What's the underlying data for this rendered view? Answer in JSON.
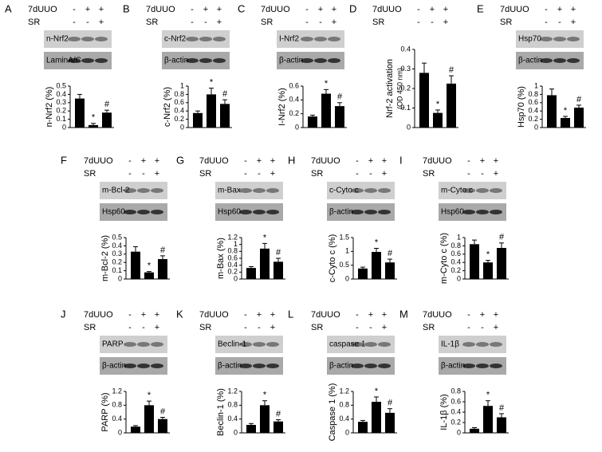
{
  "chart_data": [
    {
      "type": "bar",
      "panel": "A",
      "treatments": [
        {
          "name": "7dUUO",
          "signs": [
            "-",
            "+",
            "+"
          ]
        },
        {
          "name": "SR",
          "signs": [
            "-",
            "-",
            "+"
          ]
        }
      ],
      "blots": [
        "n-Nrf2",
        "LaminA/C"
      ],
      "ylabel": "n-Nrf2 (%)",
      "ylim": [
        0,
        0.5
      ],
      "yticks": [
        0,
        0.1,
        0.2,
        0.3,
        0.4,
        0.5
      ],
      "values": [
        0.35,
        0.03,
        0.18
      ],
      "errors": [
        0.05,
        0.02,
        0.03
      ],
      "markers": [
        null,
        "*",
        "#"
      ],
      "color": "#000000"
    },
    {
      "type": "bar",
      "panel": "B",
      "treatments": [
        {
          "name": "7dUUO",
          "signs": [
            "-",
            "+",
            "+"
          ]
        },
        {
          "name": "SR",
          "signs": [
            "-",
            "-",
            "+"
          ]
        }
      ],
      "blots": [
        "c-Nrf2",
        "β-actin"
      ],
      "ylabel": "c-Nrf2 (%)",
      "ylim": [
        0,
        1
      ],
      "yticks": [
        0,
        0.2,
        0.4,
        0.6,
        0.8,
        1
      ],
      "values": [
        0.35,
        0.8,
        0.57
      ],
      "errors": [
        0.05,
        0.15,
        0.1
      ],
      "markers": [
        null,
        "*",
        "#"
      ],
      "color": "#000000"
    },
    {
      "type": "bar",
      "panel": "C",
      "treatments": [
        {
          "name": "7dUUO",
          "signs": [
            "-",
            "+",
            "+"
          ]
        },
        {
          "name": "SR",
          "signs": [
            "-",
            "-",
            "+"
          ]
        }
      ],
      "blots": [
        "I-Nrf2",
        "β-actin"
      ],
      "ylabel": "I-Nrf2 (%)",
      "ylim": [
        0,
        0.6
      ],
      "yticks": [
        0,
        0.2,
        0.4,
        0.6
      ],
      "values": [
        0.16,
        0.49,
        0.31
      ],
      "errors": [
        0.02,
        0.06,
        0.05
      ],
      "markers": [
        null,
        "*",
        "#"
      ],
      "color": "#000000"
    },
    {
      "type": "bar",
      "panel": "D",
      "treatments": [
        {
          "name": "7dUUO",
          "signs": [
            "-",
            "+",
            "+"
          ]
        },
        {
          "name": "SR",
          "signs": [
            "-",
            "-",
            "+"
          ]
        }
      ],
      "ylabel": "Nrf-2 activation",
      "ylabel_sub": "(OD 450 nm)",
      "ylim": [
        0,
        0.4
      ],
      "yticks": [
        0,
        0.1,
        0.2,
        0.3,
        0.4
      ],
      "values": [
        0.28,
        0.075,
        0.225
      ],
      "errors": [
        0.05,
        0.015,
        0.04
      ],
      "markers": [
        null,
        "*",
        "#"
      ],
      "color": "#000000"
    },
    {
      "type": "bar",
      "panel": "E",
      "treatments": [
        {
          "name": "7dUUO",
          "signs": [
            "-",
            "+",
            "+"
          ]
        },
        {
          "name": "SR",
          "signs": [
            "-",
            "-",
            "+"
          ]
        }
      ],
      "blots": [
        "Hsp70",
        "β-actin"
      ],
      "ylabel": "Hsp70 (%)",
      "ylim": [
        0,
        1
      ],
      "yticks": [
        0,
        0.2,
        0.4,
        0.6,
        0.8,
        1
      ],
      "values": [
        0.78,
        0.23,
        0.48
      ],
      "errors": [
        0.15,
        0.04,
        0.06
      ],
      "markers": [
        null,
        "*",
        "#"
      ],
      "color": "#000000"
    },
    {
      "type": "bar",
      "panel": "F",
      "treatments": [
        {
          "name": "7dUUO",
          "signs": [
            "-",
            "+",
            "+"
          ]
        },
        {
          "name": "SR",
          "signs": [
            "-",
            "-",
            "+"
          ]
        }
      ],
      "blots": [
        "m-Bcl-2",
        "Hsp60"
      ],
      "ylabel": "m-Bcl-2 (%)",
      "ylim": [
        0,
        0.5
      ],
      "yticks": [
        0,
        0.1,
        0.2,
        0.3,
        0.4,
        0.5
      ],
      "values": [
        0.33,
        0.08,
        0.24
      ],
      "errors": [
        0.06,
        0.01,
        0.04
      ],
      "markers": [
        null,
        "*",
        "#"
      ],
      "color": "#000000"
    },
    {
      "type": "bar",
      "panel": "G",
      "treatments": [
        {
          "name": "7dUUO",
          "signs": [
            "-",
            "+",
            "+"
          ]
        },
        {
          "name": "SR",
          "signs": [
            "-",
            "-",
            "+"
          ]
        }
      ],
      "blots": [
        "m-Bax",
        "Hsp60"
      ],
      "ylabel": "m-Bax (%)",
      "ylim": [
        0,
        1.2
      ],
      "yticks": [
        0,
        0.2,
        0.4,
        0.6,
        0.8,
        1,
        1.2
      ],
      "values": [
        0.32,
        0.88,
        0.5
      ],
      "errors": [
        0.04,
        0.15,
        0.1
      ],
      "markers": [
        null,
        "*",
        "#"
      ],
      "color": "#000000"
    },
    {
      "type": "bar",
      "panel": "H",
      "treatments": [
        {
          "name": "7dUUO",
          "signs": [
            "-",
            "+",
            "+"
          ]
        },
        {
          "name": "SR",
          "signs": [
            "-",
            "-",
            "+"
          ]
        }
      ],
      "blots": [
        "c-Cyto c",
        "β-actin"
      ],
      "ylabel": "c-Cyto c (%)",
      "ylim": [
        0,
        1.5
      ],
      "yticks": [
        0,
        0.5,
        1,
        1.5
      ],
      "values": [
        0.38,
        0.98,
        0.6
      ],
      "errors": [
        0.05,
        0.13,
        0.12
      ],
      "markers": [
        null,
        "*",
        "#"
      ],
      "color": "#000000"
    },
    {
      "type": "bar",
      "panel": "I",
      "treatments": [
        {
          "name": "7dUUO",
          "signs": [
            "-",
            "+",
            "+"
          ]
        },
        {
          "name": "SR",
          "signs": [
            "-",
            "-",
            "+"
          ]
        }
      ],
      "blots": [
        "m-Cyto c",
        "Hsp60"
      ],
      "ylabel": "m-Cyto c (%)",
      "ylim": [
        0,
        1
      ],
      "yticks": [
        0,
        0.2,
        0.4,
        0.6,
        0.8,
        1
      ],
      "values": [
        0.84,
        0.4,
        0.75
      ],
      "errors": [
        0.1,
        0.05,
        0.12
      ],
      "markers": [
        null,
        "*",
        "#"
      ],
      "color": "#000000"
    },
    {
      "type": "bar",
      "panel": "J",
      "treatments": [
        {
          "name": "7dUUO",
          "signs": [
            "-",
            "+",
            "+"
          ]
        },
        {
          "name": "SR",
          "signs": [
            "-",
            "-",
            "+"
          ]
        }
      ],
      "blots": [
        "PARP",
        "β-actin"
      ],
      "ylabel": "PARP (%)",
      "ylim": [
        0,
        1.2
      ],
      "yticks": [
        0,
        0.4,
        0.8,
        1.2
      ],
      "values": [
        0.18,
        0.8,
        0.4
      ],
      "errors": [
        0.03,
        0.12,
        0.05
      ],
      "markers": [
        null,
        "*",
        "#"
      ],
      "color": "#000000"
    },
    {
      "type": "bar",
      "panel": "K",
      "treatments": [
        {
          "name": "7dUUO",
          "signs": [
            "-",
            "+",
            "+"
          ]
        },
        {
          "name": "SR",
          "signs": [
            "-",
            "-",
            "+"
          ]
        }
      ],
      "blots": [
        "Beclin-1",
        "β-actin"
      ],
      "ylabel": "Beclin-1 (%)",
      "ylim": [
        0,
        1.2
      ],
      "yticks": [
        0,
        0.4,
        0.8,
        1.2
      ],
      "values": [
        0.23,
        0.8,
        0.33
      ],
      "errors": [
        0.04,
        0.13,
        0.05
      ],
      "markers": [
        null,
        "*",
        "#"
      ],
      "color": "#000000"
    },
    {
      "type": "bar",
      "panel": "L",
      "treatments": [
        {
          "name": "7dUUO",
          "signs": [
            "-",
            "+",
            "+"
          ]
        },
        {
          "name": "SR",
          "signs": [
            "-",
            "-",
            "+"
          ]
        }
      ],
      "blots": [
        "caspase 1",
        "β-actin"
      ],
      "ylabel": "Caspase 1 (%)",
      "ylim": [
        0,
        1.2
      ],
      "yticks": [
        0,
        0.4,
        0.8,
        1.2
      ],
      "values": [
        0.32,
        0.9,
        0.58
      ],
      "errors": [
        0.04,
        0.14,
        0.12
      ],
      "markers": [
        null,
        "*",
        "#"
      ],
      "color": "#000000"
    },
    {
      "type": "bar",
      "panel": "M",
      "treatments": [
        {
          "name": "7dUUO",
          "signs": [
            "-",
            "+",
            "+"
          ]
        },
        {
          "name": "SR",
          "signs": [
            "-",
            "-",
            "+"
          ]
        }
      ],
      "blots": [
        "IL-1β",
        "β-actin"
      ],
      "ylabel": "IL-1β (%)",
      "ylim": [
        0,
        0.8
      ],
      "yticks": [
        0,
        0.2,
        0.4,
        0.6,
        0.8
      ],
      "values": [
        0.08,
        0.52,
        0.3
      ],
      "errors": [
        0.02,
        0.1,
        0.07
      ],
      "markers": [
        null,
        "*",
        "#"
      ],
      "color": "#000000"
    }
  ]
}
